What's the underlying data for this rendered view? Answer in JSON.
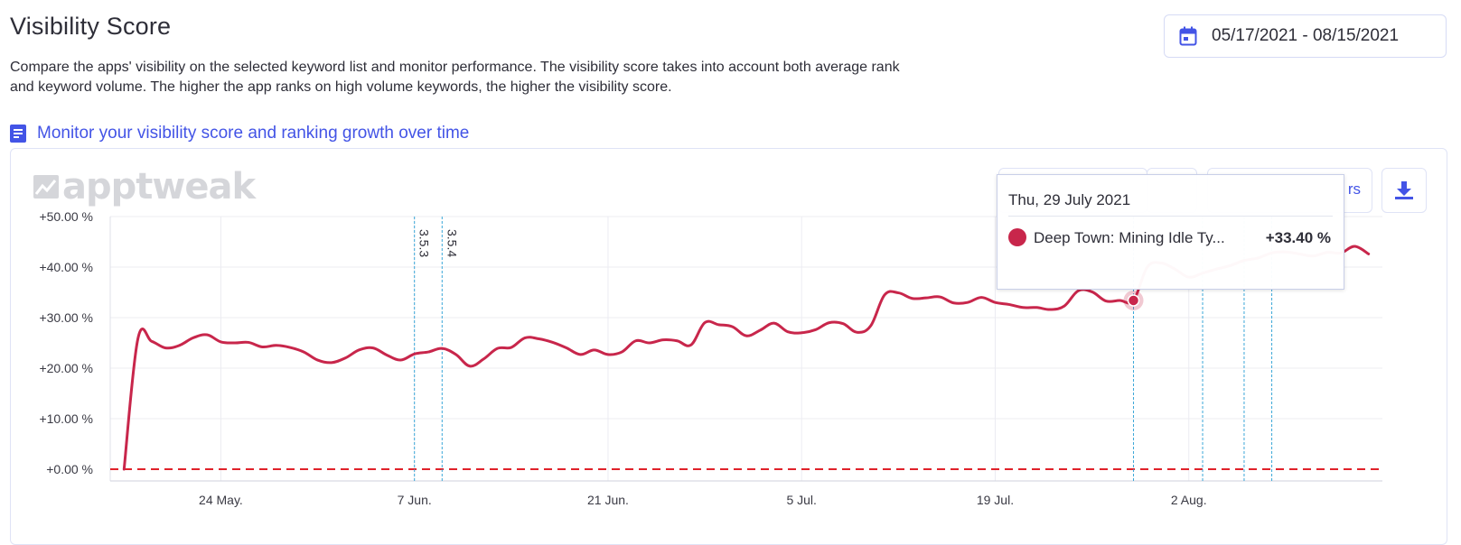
{
  "header": {
    "title": "Visibility Score",
    "description": "Compare the apps' visibility on the selected keyword list and monitor performance. The visibility score takes into account both average rank and keyword volume. The higher the app ranks on high volume keywords, the higher the visibility score.",
    "date_range": "05/17/2021 - 08/15/2021",
    "guide_link": "Monitor your visibility score and ranking growth over time"
  },
  "toolbar": {
    "partial_label": "rs"
  },
  "logo_text": "apptweak",
  "colors": {
    "series": "#c8264b",
    "accent": "#4354e6",
    "version_line": "#3aa7d8",
    "zero_line": "#e0212a"
  },
  "icons": {
    "date": "calendar-icon",
    "guide": "book-icon",
    "download": "download-icon",
    "logo": "chart-logo-icon"
  },
  "tooltip": {
    "date": "Thu, 29 July 2021",
    "series_name": "Deep Town: Mining Idle Ty...",
    "value": "+33.40 %"
  },
  "chart_data": {
    "type": "line",
    "title": "",
    "xlabel": "",
    "ylabel": "",
    "ylim": [
      0,
      50
    ],
    "yticks": [
      "+0.00 %",
      "+10.00 %",
      "+20.00 %",
      "+30.00 %",
      "+40.00 %",
      "+50.00 %"
    ],
    "xticks": [
      {
        "date": "2021-05-24",
        "label": "24 May."
      },
      {
        "date": "2021-06-07",
        "label": "7 Jun."
      },
      {
        "date": "2021-06-21",
        "label": "21 Jun."
      },
      {
        "date": "2021-07-05",
        "label": "5 Jul."
      },
      {
        "date": "2021-07-19",
        "label": "19 Jul."
      },
      {
        "date": "2021-08-02",
        "label": "2 Aug."
      }
    ],
    "xlim": [
      "2021-05-16",
      "2021-08-16"
    ],
    "grid": true,
    "baseline": 0,
    "version_markers": [
      {
        "date": "2021-06-07",
        "label": "3.5.3"
      },
      {
        "date": "2021-06-09",
        "label": "3.5.4"
      },
      {
        "date": "2021-07-29",
        "label": ""
      },
      {
        "date": "2021-08-03",
        "label": ""
      },
      {
        "date": "2021-08-06",
        "label": ""
      },
      {
        "date": "2021-08-08",
        "label": ""
      }
    ],
    "highlight": {
      "date": "2021-07-29",
      "value": 33.4
    },
    "series": [
      {
        "name": "Deep Town: Mining Idle Ty...",
        "points": [
          [
            "2021-05-17",
            0
          ],
          [
            "2021-05-18",
            25.8
          ],
          [
            "2021-05-19",
            25.3
          ],
          [
            "2021-05-20",
            24.0
          ],
          [
            "2021-05-21",
            24.5
          ],
          [
            "2021-05-22",
            26.0
          ],
          [
            "2021-05-23",
            26.6
          ],
          [
            "2021-05-24",
            25.2
          ],
          [
            "2021-05-25",
            25.0
          ],
          [
            "2021-05-26",
            25.1
          ],
          [
            "2021-05-27",
            24.2
          ],
          [
            "2021-05-28",
            24.5
          ],
          [
            "2021-05-29",
            24.1
          ],
          [
            "2021-05-30",
            23.2
          ],
          [
            "2021-05-31",
            21.6
          ],
          [
            "2021-06-01",
            21.1
          ],
          [
            "2021-06-02",
            22.0
          ],
          [
            "2021-06-03",
            23.6
          ],
          [
            "2021-06-04",
            24.0
          ],
          [
            "2021-06-05",
            22.6
          ],
          [
            "2021-06-06",
            21.6
          ],
          [
            "2021-06-07",
            22.8
          ],
          [
            "2021-06-08",
            23.2
          ],
          [
            "2021-06-09",
            23.9
          ],
          [
            "2021-06-10",
            22.7
          ],
          [
            "2021-06-11",
            20.4
          ],
          [
            "2021-06-12",
            21.8
          ],
          [
            "2021-06-13",
            23.9
          ],
          [
            "2021-06-14",
            24.1
          ],
          [
            "2021-06-15",
            26.0
          ],
          [
            "2021-06-16",
            25.8
          ],
          [
            "2021-06-17",
            25.1
          ],
          [
            "2021-06-18",
            24.0
          ],
          [
            "2021-06-19",
            22.7
          ],
          [
            "2021-06-20",
            23.6
          ],
          [
            "2021-06-21",
            22.7
          ],
          [
            "2021-06-22",
            23.2
          ],
          [
            "2021-06-23",
            25.4
          ],
          [
            "2021-06-24",
            25.0
          ],
          [
            "2021-06-25",
            25.6
          ],
          [
            "2021-06-26",
            25.4
          ],
          [
            "2021-06-27",
            24.6
          ],
          [
            "2021-06-28",
            29.0
          ],
          [
            "2021-06-29",
            28.6
          ],
          [
            "2021-06-30",
            28.2
          ],
          [
            "2021-07-01",
            26.4
          ],
          [
            "2021-07-02",
            27.5
          ],
          [
            "2021-07-03",
            28.9
          ],
          [
            "2021-07-04",
            27.2
          ],
          [
            "2021-07-05",
            27.0
          ],
          [
            "2021-07-06",
            27.6
          ],
          [
            "2021-07-07",
            29.0
          ],
          [
            "2021-07-08",
            28.8
          ],
          [
            "2021-07-09",
            27.1
          ],
          [
            "2021-07-10",
            28.4
          ],
          [
            "2021-07-11",
            34.5
          ],
          [
            "2021-07-12",
            34.9
          ],
          [
            "2021-07-13",
            33.8
          ],
          [
            "2021-07-14",
            33.9
          ],
          [
            "2021-07-15",
            34.1
          ],
          [
            "2021-07-16",
            32.9
          ],
          [
            "2021-07-17",
            33.0
          ],
          [
            "2021-07-18",
            34.0
          ],
          [
            "2021-07-19",
            33.0
          ],
          [
            "2021-07-20",
            32.6
          ],
          [
            "2021-07-21",
            32.0
          ],
          [
            "2021-07-22",
            32.0
          ],
          [
            "2021-07-23",
            31.6
          ],
          [
            "2021-07-24",
            32.3
          ],
          [
            "2021-07-25",
            35.3
          ],
          [
            "2021-07-26",
            35.1
          ],
          [
            "2021-07-27",
            33.3
          ],
          [
            "2021-07-28",
            33.4
          ],
          [
            "2021-07-29",
            33.4
          ],
          [
            "2021-07-30",
            40.0
          ],
          [
            "2021-07-31",
            40.8
          ],
          [
            "2021-08-01",
            39.6
          ],
          [
            "2021-08-02",
            38.0
          ],
          [
            "2021-08-03",
            38.8
          ],
          [
            "2021-08-04",
            39.6
          ],
          [
            "2021-08-05",
            40.3
          ],
          [
            "2021-08-06",
            41.3
          ],
          [
            "2021-08-07",
            41.8
          ],
          [
            "2021-08-08",
            42.8
          ],
          [
            "2021-08-09",
            43.0
          ],
          [
            "2021-08-10",
            42.6
          ],
          [
            "2021-08-11",
            42.2
          ],
          [
            "2021-08-12",
            42.9
          ],
          [
            "2021-08-13",
            42.8
          ],
          [
            "2021-08-14",
            44.1
          ],
          [
            "2021-08-15",
            42.6
          ]
        ]
      }
    ]
  }
}
